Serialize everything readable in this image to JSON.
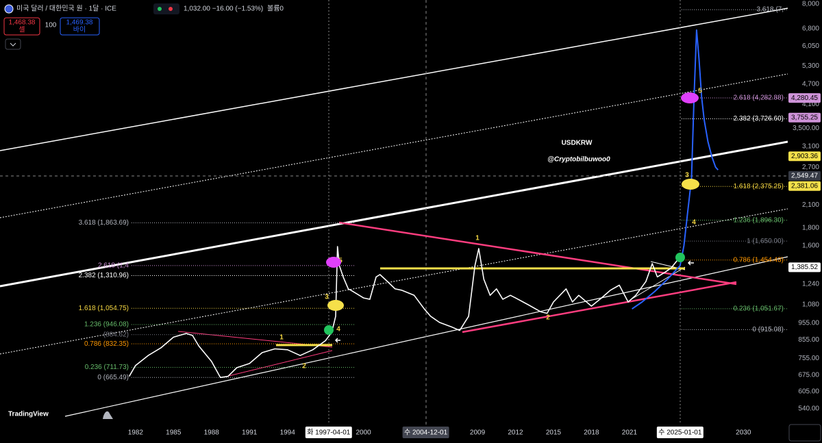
{
  "header": {
    "symbol": "미국 달러 / 대한민국 원 · 1달 · ICE",
    "ohlc": "1,032.00 −16.00 (−1.53%)",
    "volume": "볼륨0",
    "sell_price": "1,468.38",
    "sell_label": "셀",
    "spread": "100",
    "buy_price": "1,469.38",
    "buy_label": "바이",
    "logo": "TradingView"
  },
  "chart_data": {
    "type": "line",
    "title": "USDKRW",
    "subtitle": "@Cryptobilbuwoo0",
    "log_scale": true,
    "xlim": [
      1971.3,
      2033.5
    ],
    "ylim": [
      540,
      8000
    ],
    "xticks": [
      1982,
      1985,
      1988,
      1991,
      1994,
      2000,
      2009,
      2012,
      2015,
      2018,
      2021,
      2030
    ],
    "yticks": [
      {
        "value": 8000,
        "label": "8,000"
      },
      {
        "value": 6800,
        "label": "6,800"
      },
      {
        "value": 6050,
        "label": "6,050"
      },
      {
        "value": 5300,
        "label": "5,300"
      },
      {
        "value": 4700,
        "label": "4,700"
      },
      {
        "value": 4100,
        "label": "4,100"
      },
      {
        "value": 3500,
        "label": "3,500.00"
      },
      {
        "value": 3100,
        "label": "3,100"
      },
      {
        "value": 2700,
        "label": "2,700"
      },
      {
        "value": 2100,
        "label": "2,100"
      },
      {
        "value": 1800,
        "label": "1,800"
      },
      {
        "value": 1600,
        "label": "1,600"
      },
      {
        "value": 1240,
        "label": "1,240"
      },
      {
        "value": 1080,
        "label": "1,080"
      },
      {
        "value": 955,
        "label": "955.00"
      },
      {
        "value": 855,
        "label": "855.00"
      },
      {
        "value": 755,
        "label": "755.00"
      },
      {
        "value": 675,
        "label": "675.00"
      },
      {
        "value": 605,
        "label": "605.00"
      },
      {
        "value": 540,
        "label": "540.00"
      }
    ],
    "series": [
      {
        "color": "#ffffff",
        "x": [
          1981.5,
          1982,
          1983,
          1984,
          1985,
          1986,
          1986.5,
          1987,
          1988,
          1988.7,
          1989.3,
          1990,
          1991,
          1992,
          1993,
          1994,
          1995,
          1996,
          1997,
          1997.5,
          1997.8,
          1997.95,
          1998.1,
          1998.4,
          1998.8,
          1999,
          1999.5,
          2000,
          2000.5,
          2001,
          2001.3,
          2002,
          2002.5,
          2003,
          2004,
          2004.8,
          2005.3,
          2006,
          2007,
          2007.6,
          2008.3,
          2008.8,
          2009.1,
          2009.5,
          2010,
          2010.5,
          2011,
          2011.6,
          2012,
          2013,
          2014,
          2014.5,
          2015,
          2016,
          2016.5,
          2017,
          2018,
          2018.8,
          2019.5,
          2020.2,
          2020.9,
          2021.5,
          2022.3,
          2022.8,
          2023.2,
          2023.8,
          2024.3,
          2024.9,
          2025.2
        ],
        "values": [
          670,
          720,
          770,
          810,
          870,
          892,
          880,
          820,
          740,
          665,
          670,
          710,
          730,
          785,
          805,
          800,
          770,
          800,
          850,
          900,
          1000,
          1592,
          1400,
          1300,
          1200,
          1190,
          1160,
          1130,
          1120,
          1300,
          1320,
          1250,
          1200,
          1190,
          1150,
          1050,
          1000,
          960,
          930,
          910,
          1000,
          1400,
          1570,
          1280,
          1150,
          1200,
          1120,
          1150,
          1130,
          1080,
          1030,
          1020,
          1100,
          1200,
          1100,
          1150,
          1070,
          1130,
          1190,
          1230,
          1100,
          1150,
          1260,
          1420,
          1300,
          1340,
          1380,
          1470,
          1440
        ]
      },
      {
        "color": "#2962ff",
        "x": [
          2021.2,
          2022,
          2023,
          2024,
          2025,
          2025.3,
          2025.6,
          2025.9,
          2026.1,
          2026.3,
          2026.5,
          2026.7,
          2026.9,
          2027.2,
          2027.5,
          2027.8,
          2028
        ],
        "values": [
          1050,
          1100,
          1180,
          1280,
          1400,
          1600,
          2000,
          2500,
          4300,
          6730,
          5500,
          4300,
          3700,
          3200,
          2900,
          2700,
          2650
        ]
      }
    ],
    "fib_left": [
      {
        "label": "3.618 (1,863.69)",
        "value": 1863.69,
        "color": "#b2b5be"
      },
      {
        "label": "2.618 (1,4",
        "value": 1402,
        "color": "#ce93d8"
      },
      {
        "label": "2.382 (1,310.96)",
        "value": 1310.96,
        "color": "#ffffff"
      },
      {
        "label": "1.618 (1,054.75)",
        "value": 1054.75,
        "color": "#f5d742"
      },
      {
        "label": "1.236 (946.08)",
        "value": 946.08,
        "color": "#66bb6a"
      },
      {
        "label": "(884.62)",
        "value": 884.62,
        "color": "#787b86"
      },
      {
        "label": "0.786 (832.35)",
        "value": 832.35,
        "color": "#ff9800"
      },
      {
        "label": "0.236 (711.73)",
        "value": 711.73,
        "color": "#66bb6a"
      },
      {
        "label": "0 (665.49)",
        "value": 665.49,
        "color": "#b2b5be"
      }
    ],
    "fib_right": [
      {
        "label": "3.618 (7,",
        "value": 7710,
        "color": "#b2b5be"
      },
      {
        "label": "2.618 (4,282.88)",
        "value": 4282.88,
        "color": "#ce93d8"
      },
      {
        "label": "2.382 (3,726.60)",
        "value": 3726.6,
        "color": "#ffffff"
      },
      {
        "label": "1.618 (2,375.25)",
        "value": 2375.25,
        "color": "#f5d742"
      },
      {
        "label": "1.236 (1,896.30)",
        "value": 1896.3,
        "color": "#66bb6a"
      },
      {
        "label": "1 (1,650.00)",
        "value": 1650,
        "color": "#787b86"
      },
      {
        "label": "0.786 (1,454.43)",
        "value": 1454.43,
        "color": "#ff9800"
      },
      {
        "label": "0.236 (1,051.67)",
        "value": 1051.67,
        "color": "#66bb6a"
      },
      {
        "label": "0 (915.08)",
        "value": 915.08,
        "color": "#b2b5be"
      }
    ],
    "price_tags": [
      {
        "label": "4,280.45",
        "value": 4280.45,
        "color": "#ce93d8"
      },
      {
        "label": "3,755.25",
        "value": 3755.25,
        "color": "#ce93d8"
      },
      {
        "label": "2,903.36",
        "value": 2903.36,
        "color": "#f5e04a"
      },
      {
        "label": "2,549.47",
        "value": 2549.47,
        "color": "#363a45"
      },
      {
        "label": "2,381.06",
        "value": 2381.06,
        "color": "#f5e04a"
      },
      {
        "label": "1,385.52",
        "value": 1385.52,
        "color": "#ffffff"
      }
    ],
    "date_markers": [
      {
        "label": "화 1997-04-01",
        "x": 1997.25,
        "highlight": true
      },
      {
        "label": "수 2004-12-01",
        "x": 2004.92,
        "highlight": false
      },
      {
        "label": "수 2025-01-01",
        "x": 2025.0,
        "highlight": true
      }
    ],
    "wave_labels": [
      "1",
      "2",
      "3",
      "4",
      "5",
      "1",
      "2",
      "3",
      "4",
      "5"
    ]
  }
}
